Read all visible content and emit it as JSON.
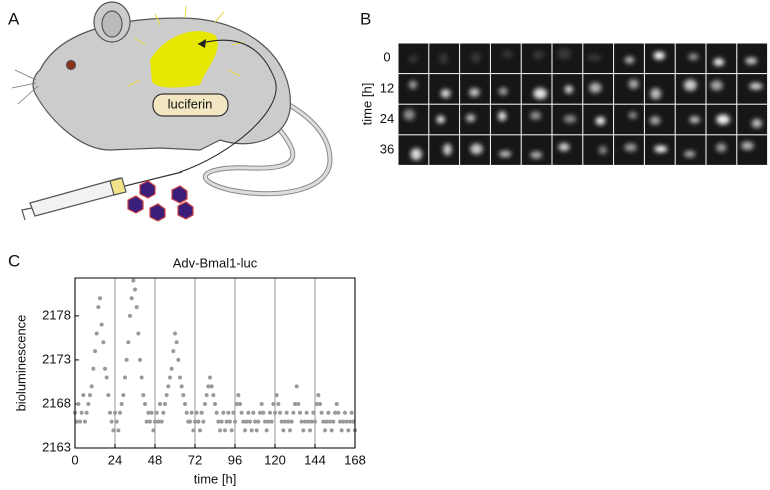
{
  "panel_labels": [
    "A",
    "B",
    "C"
  ],
  "mouse": {
    "label": "luciferin"
  },
  "image_grid": {
    "ylabel": "time [h]",
    "row_labels": [
      "0",
      "12",
      "24",
      "36"
    ]
  },
  "chart_data": {
    "type": "scatter",
    "title": "Adv-Bmal1-luc",
    "xlabel": "time [h]",
    "ylabel": "bioluminescence",
    "color": "#999999",
    "xlim": [
      0,
      168
    ],
    "ylim": [
      2163,
      2182.3
    ],
    "xticks": [
      0,
      24,
      48,
      72,
      96,
      120,
      144,
      168
    ],
    "yticks": [
      2163,
      2168,
      2173,
      2178
    ],
    "grid": true,
    "x": [
      0,
      1,
      2,
      3,
      4,
      5,
      6,
      7,
      8,
      9,
      10,
      11,
      12,
      13,
      14,
      15,
      16,
      17,
      18,
      19,
      20,
      21,
      22,
      23,
      24,
      25,
      26,
      27,
      28,
      29,
      30,
      31,
      32,
      33,
      34,
      35,
      36,
      37,
      38,
      39,
      40,
      41,
      42,
      43,
      44,
      45,
      46,
      47,
      48,
      49,
      50,
      51,
      52,
      53,
      54,
      55,
      56,
      57,
      58,
      59,
      60,
      61,
      62,
      63,
      64,
      65,
      66,
      67,
      68,
      69,
      70,
      71,
      72,
      73,
      74,
      75,
      76,
      77,
      78,
      79,
      80,
      81,
      82,
      83,
      84,
      85,
      86,
      87,
      88,
      89,
      90,
      91,
      92,
      93,
      94,
      95,
      96,
      97,
      98,
      99,
      100,
      101,
      102,
      103,
      104,
      105,
      106,
      107,
      108,
      109,
      110,
      111,
      112,
      113,
      114,
      115,
      116,
      117,
      118,
      119,
      120,
      121,
      122,
      123,
      124,
      125,
      126,
      127,
      128,
      129,
      130,
      131,
      132,
      133,
      134,
      135,
      136,
      137,
      138,
      139,
      140,
      141,
      142,
      143,
      144,
      145,
      146,
      147,
      148,
      149,
      150,
      151,
      152,
      153,
      154,
      155,
      156,
      157,
      158,
      159,
      160,
      161,
      162,
      163,
      164,
      165,
      166,
      167,
      168
    ],
    "values": [
      2167,
      2166,
      2168,
      2166,
      2167,
      2169,
      2166,
      2167,
      2168,
      2169,
      2170,
      2172,
      2174,
      2176,
      2179,
      2180,
      2177,
      2175,
      2172,
      2171,
      2169,
      2167,
      2166,
      2165,
      2167,
      2166,
      2165,
      2167,
      2168,
      2169,
      2171,
      2173,
      2175,
      2178,
      2180,
      2182,
      2181,
      2179,
      2176,
      2173,
      2171,
      2169,
      2168,
      2166,
      2167,
      2166,
      2167,
      2165,
      2166,
      2167,
      2166,
      2168,
      2166,
      2167,
      2168,
      2169,
      2170,
      2171,
      2172,
      2174,
      2176,
      2175,
      2173,
      2171,
      2170,
      2169,
      2168,
      2167,
      2166,
      2166,
      2167,
      2165,
      2166,
      2167,
      2166,
      2165,
      2167,
      2166,
      2168,
      2169,
      2170,
      2171,
      2170,
      2169,
      2168,
      2167,
      2166,
      2165,
      2166,
      2167,
      2165,
      2166,
      2167,
      2166,
      2165,
      2167,
      2166,
      2168,
      2169,
      2168,
      2167,
      2166,
      2165,
      2166,
      2167,
      2166,
      2165,
      2167,
      2166,
      2165,
      2166,
      2167,
      2168,
      2167,
      2166,
      2165,
      2166,
      2167,
      2166,
      2168,
      2167,
      2169,
      2168,
      2167,
      2166,
      2165,
      2166,
      2167,
      2166,
      2165,
      2166,
      2167,
      2168,
      2170,
      2168,
      2167,
      2166,
      2165,
      2166,
      2167,
      2166,
      2165,
      2166,
      2167,
      2166,
      2168,
      2169,
      2168,
      2167,
      2166,
      2165,
      2166,
      2167,
      2166,
      2165,
      2166,
      2167,
      2168,
      2167,
      2166,
      2165,
      2166,
      2167,
      2166,
      2165,
      2166,
      2167,
      2166,
      2165
    ]
  }
}
